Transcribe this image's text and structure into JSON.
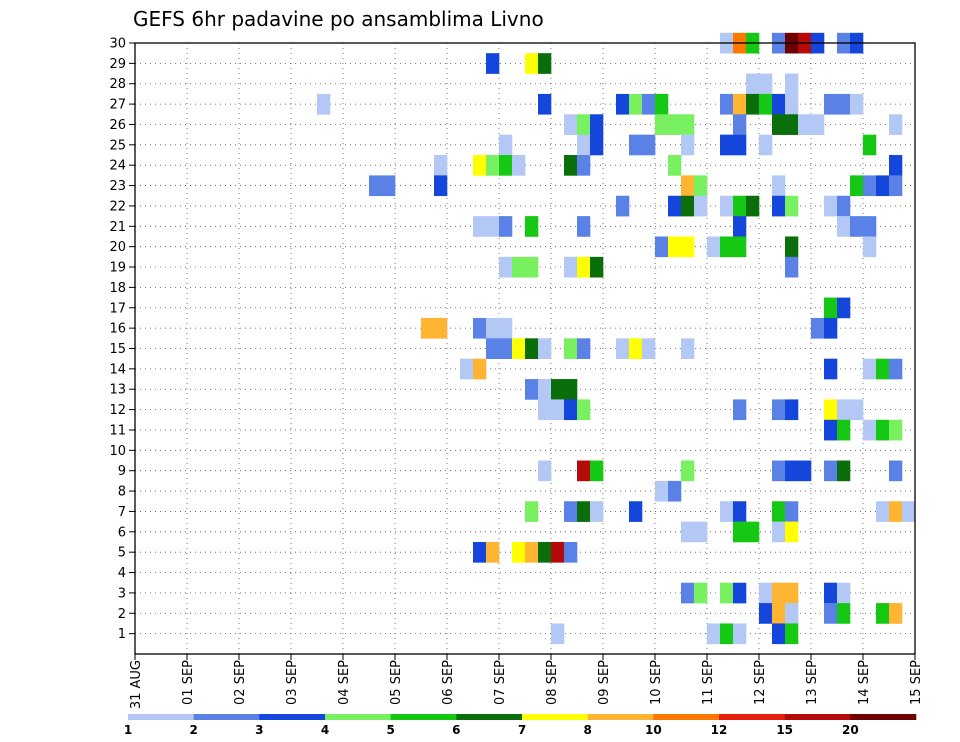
{
  "chart_data": {
    "type": "heatmap",
    "title": "GEFS 6hr padavine po ansamblima Livno",
    "xlabel": "",
    "ylabel": "",
    "x_tick_labels": [
      "31 AUG",
      "01 SEP",
      "02 SEP",
      "03 SEP",
      "04 SEP",
      "05 SEP",
      "06 SEP",
      "07 SEP",
      "08 SEP",
      "09 SEP",
      "10 SEP",
      "11 SEP",
      "12 SEP",
      "13 SEP",
      "14 SEP",
      "15 SEP"
    ],
    "x_range": [
      0,
      60
    ],
    "y_tick_labels": [
      "1",
      "2",
      "3",
      "4",
      "5",
      "6",
      "7",
      "8",
      "9",
      "10",
      "11",
      "12",
      "13",
      "14",
      "15",
      "16",
      "17",
      "18",
      "19",
      "20",
      "21",
      "22",
      "23",
      "24",
      "25",
      "26",
      "27",
      "28",
      "29",
      "30"
    ],
    "y_range": [
      0,
      30
    ],
    "grid": true,
    "legend_levels": [
      "1",
      "2",
      "3",
      "4",
      "5",
      "6",
      "7",
      "8",
      "10",
      "12",
      "15",
      "20"
    ],
    "legend_colors": [
      "#b4c8f5",
      "#5a82e6",
      "#1446dc",
      "#78f060",
      "#14c814",
      "#0a6e0a",
      "#ffff00",
      "#ffb432",
      "#ff7800",
      "#e61e0a",
      "#b40a0a",
      "#6e0000"
    ],
    "cells": [
      [
        45.5,
        30,
        1
      ],
      [
        46.5,
        30,
        9
      ],
      [
        47.5,
        30,
        5
      ],
      [
        49.5,
        30,
        2
      ],
      [
        50.5,
        30,
        12
      ],
      [
        51.5,
        30,
        11
      ],
      [
        52.5,
        30,
        3
      ],
      [
        54.5,
        30,
        2
      ],
      [
        55.5,
        30,
        3
      ],
      [
        27.5,
        29,
        3
      ],
      [
        30.5,
        29,
        7
      ],
      [
        31.5,
        29,
        6
      ],
      [
        47.5,
        28,
        1
      ],
      [
        48.5,
        28,
        1
      ],
      [
        50.5,
        28,
        1
      ],
      [
        14.5,
        27,
        1
      ],
      [
        31.5,
        27,
        3
      ],
      [
        37.5,
        27,
        3
      ],
      [
        38.5,
        27,
        4
      ],
      [
        39.5,
        27,
        2
      ],
      [
        40.5,
        27,
        5
      ],
      [
        45.5,
        27,
        2
      ],
      [
        46.5,
        27,
        8
      ],
      [
        47.5,
        27,
        6
      ],
      [
        48.5,
        27,
        5
      ],
      [
        49.5,
        27,
        3
      ],
      [
        50.5,
        27,
        1
      ],
      [
        53.5,
        27,
        2
      ],
      [
        54.5,
        27,
        2
      ],
      [
        55.5,
        27,
        1
      ],
      [
        33.5,
        26,
        1
      ],
      [
        34.5,
        26,
        4
      ],
      [
        35.5,
        26,
        3
      ],
      [
        40.5,
        26,
        4
      ],
      [
        41.5,
        26,
        4
      ],
      [
        42.5,
        26,
        4
      ],
      [
        46.5,
        26,
        2
      ],
      [
        49.5,
        26,
        6
      ],
      [
        50.5,
        26,
        6
      ],
      [
        51.5,
        26,
        1
      ],
      [
        52.5,
        26,
        1
      ],
      [
        58.5,
        26,
        1
      ],
      [
        28.5,
        25,
        1
      ],
      [
        34.5,
        25,
        1
      ],
      [
        35.5,
        25,
        3
      ],
      [
        38.5,
        25,
        2
      ],
      [
        39.5,
        25,
        2
      ],
      [
        42.5,
        25,
        1
      ],
      [
        45.5,
        25,
        3
      ],
      [
        46.5,
        25,
        3
      ],
      [
        48.5,
        25,
        1
      ],
      [
        56.5,
        25,
        5
      ],
      [
        23.5,
        24,
        1
      ],
      [
        26.5,
        24,
        7
      ],
      [
        27.5,
        24,
        4
      ],
      [
        28.5,
        24,
        5
      ],
      [
        29.5,
        24,
        1
      ],
      [
        33.5,
        24,
        6
      ],
      [
        34.5,
        24,
        2
      ],
      [
        41.5,
        24,
        4
      ],
      [
        58.5,
        24,
        3
      ],
      [
        18.5,
        23,
        2
      ],
      [
        19.5,
        23,
        2
      ],
      [
        23.5,
        23,
        3
      ],
      [
        42.5,
        23,
        8
      ],
      [
        43.5,
        23,
        4
      ],
      [
        49.5,
        23,
        1
      ],
      [
        55.5,
        23,
        5
      ],
      [
        56.5,
        23,
        2
      ],
      [
        57.5,
        23,
        3
      ],
      [
        58.5,
        23,
        2
      ],
      [
        37.5,
        22,
        2
      ],
      [
        41.5,
        22,
        3
      ],
      [
        42.5,
        22,
        6
      ],
      [
        43.5,
        22,
        1
      ],
      [
        45.5,
        22,
        1
      ],
      [
        46.5,
        22,
        5
      ],
      [
        47.5,
        22,
        6
      ],
      [
        49.5,
        22,
        3
      ],
      [
        50.5,
        22,
        4
      ],
      [
        53.5,
        22,
        1
      ],
      [
        54.5,
        22,
        2
      ],
      [
        26.5,
        21,
        1
      ],
      [
        27.5,
        21,
        1
      ],
      [
        28.5,
        21,
        2
      ],
      [
        30.5,
        21,
        5
      ],
      [
        34.5,
        21,
        2
      ],
      [
        46.5,
        21,
        3
      ],
      [
        54.5,
        21,
        1
      ],
      [
        55.5,
        21,
        2
      ],
      [
        56.5,
        21,
        2
      ],
      [
        40.5,
        20,
        2
      ],
      [
        41.5,
        20,
        7
      ],
      [
        42.5,
        20,
        7
      ],
      [
        44.5,
        20,
        1
      ],
      [
        45.5,
        20,
        5
      ],
      [
        46.5,
        20,
        5
      ],
      [
        50.5,
        20,
        6
      ],
      [
        56.5,
        20,
        1
      ],
      [
        28.5,
        19,
        1
      ],
      [
        29.5,
        19,
        4
      ],
      [
        30.5,
        19,
        4
      ],
      [
        33.5,
        19,
        1
      ],
      [
        34.5,
        19,
        7
      ],
      [
        35.5,
        19,
        6
      ],
      [
        50.5,
        19,
        2
      ],
      [
        53.5,
        17,
        5
      ],
      [
        54.5,
        17,
        3
      ],
      [
        22.5,
        16,
        8
      ],
      [
        23.5,
        16,
        8
      ],
      [
        26.5,
        16,
        2
      ],
      [
        27.5,
        16,
        1
      ],
      [
        28.5,
        16,
        1
      ],
      [
        52.5,
        16,
        2
      ],
      [
        53.5,
        16,
        3
      ],
      [
        27.5,
        15,
        2
      ],
      [
        28.5,
        15,
        2
      ],
      [
        29.5,
        15,
        7
      ],
      [
        30.5,
        15,
        6
      ],
      [
        31.5,
        15,
        1
      ],
      [
        33.5,
        15,
        4
      ],
      [
        34.5,
        15,
        2
      ],
      [
        37.5,
        15,
        1
      ],
      [
        38.5,
        15,
        7
      ],
      [
        39.5,
        15,
        1
      ],
      [
        42.5,
        15,
        1
      ],
      [
        25.5,
        14,
        1
      ],
      [
        26.5,
        14,
        8
      ],
      [
        53.5,
        14,
        3
      ],
      [
        56.5,
        14,
        1
      ],
      [
        57.5,
        14,
        5
      ],
      [
        58.5,
        14,
        2
      ],
      [
        30.5,
        13,
        2
      ],
      [
        31.5,
        13,
        1
      ],
      [
        32.5,
        13,
        6
      ],
      [
        33.5,
        13,
        6
      ],
      [
        31.5,
        12,
        1
      ],
      [
        32.5,
        12,
        1
      ],
      [
        33.5,
        12,
        3
      ],
      [
        34.5,
        12,
        4
      ],
      [
        46.5,
        12,
        2
      ],
      [
        49.5,
        12,
        2
      ],
      [
        50.5,
        12,
        3
      ],
      [
        53.5,
        12,
        7
      ],
      [
        54.5,
        12,
        1
      ],
      [
        55.5,
        12,
        1
      ],
      [
        53.5,
        11,
        3
      ],
      [
        54.5,
        11,
        5
      ],
      [
        56.5,
        11,
        1
      ],
      [
        57.5,
        11,
        5
      ],
      [
        58.5,
        11,
        4
      ],
      [
        31.5,
        9,
        1
      ],
      [
        34.5,
        9,
        11
      ],
      [
        35.5,
        9,
        5
      ],
      [
        42.5,
        9,
        4
      ],
      [
        49.5,
        9,
        2
      ],
      [
        50.5,
        9,
        3
      ],
      [
        51.5,
        9,
        3
      ],
      [
        53.5,
        9,
        2
      ],
      [
        54.5,
        9,
        6
      ],
      [
        58.5,
        9,
        2
      ],
      [
        40.5,
        8,
        1
      ],
      [
        41.5,
        8,
        2
      ],
      [
        30.5,
        7,
        4
      ],
      [
        33.5,
        7,
        2
      ],
      [
        34.5,
        7,
        6
      ],
      [
        35.5,
        7,
        1
      ],
      [
        38.5,
        7,
        3
      ],
      [
        45.5,
        7,
        1
      ],
      [
        46.5,
        7,
        3
      ],
      [
        49.5,
        7,
        5
      ],
      [
        50.5,
        7,
        2
      ],
      [
        57.5,
        7,
        1
      ],
      [
        58.5,
        7,
        8
      ],
      [
        59.5,
        7,
        1
      ],
      [
        42.5,
        6,
        1
      ],
      [
        43.5,
        6,
        1
      ],
      [
        46.5,
        6,
        5
      ],
      [
        47.5,
        6,
        5
      ],
      [
        49.5,
        6,
        1
      ],
      [
        50.5,
        6,
        7
      ],
      [
        26.5,
        5,
        3
      ],
      [
        27.5,
        5,
        8
      ],
      [
        29.5,
        5,
        7
      ],
      [
        30.5,
        5,
        8
      ],
      [
        31.5,
        5,
        6
      ],
      [
        32.5,
        5,
        11
      ],
      [
        33.5,
        5,
        2
      ],
      [
        42.5,
        3,
        2
      ],
      [
        43.5,
        3,
        4
      ],
      [
        45.5,
        3,
        4
      ],
      [
        46.5,
        3,
        3
      ],
      [
        48.5,
        3,
        1
      ],
      [
        49.5,
        3,
        8
      ],
      [
        50.5,
        3,
        8
      ],
      [
        53.5,
        3,
        3
      ],
      [
        54.5,
        3,
        1
      ],
      [
        48.5,
        2,
        3
      ],
      [
        49.5,
        2,
        8
      ],
      [
        50.5,
        2,
        1
      ],
      [
        53.5,
        2,
        2
      ],
      [
        54.5,
        2,
        5
      ],
      [
        57.5,
        2,
        5
      ],
      [
        58.5,
        2,
        8
      ],
      [
        32.5,
        1,
        1
      ],
      [
        44.5,
        1,
        1
      ],
      [
        45.5,
        1,
        5
      ],
      [
        46.5,
        1,
        1
      ],
      [
        49.5,
        1,
        3
      ],
      [
        50.5,
        1,
        5
      ]
    ]
  }
}
